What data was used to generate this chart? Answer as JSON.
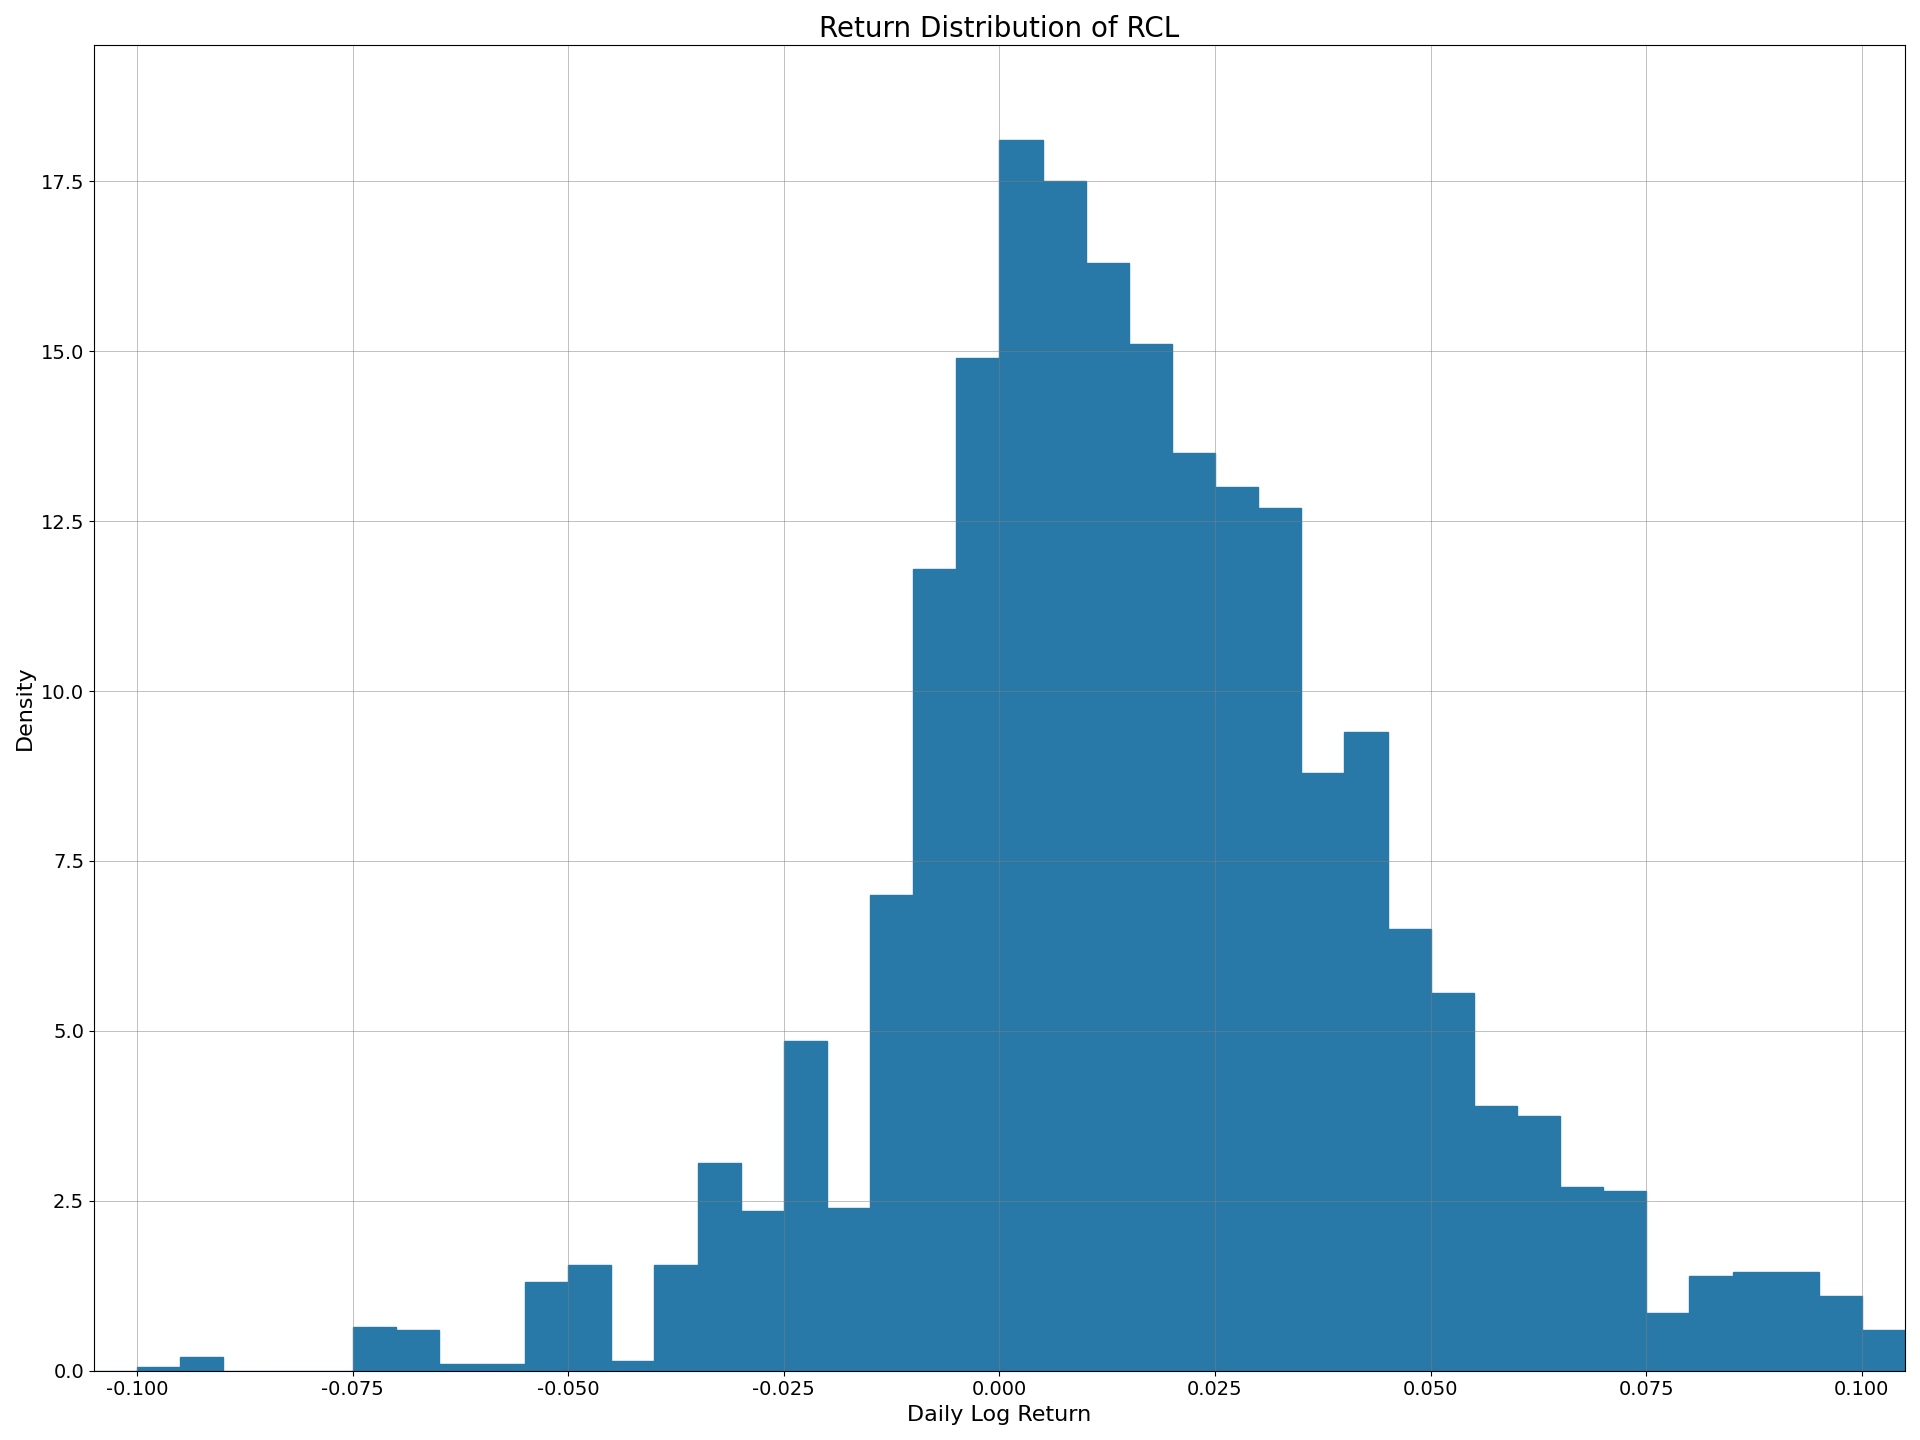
{
  "title": "Return Distribution of RCL",
  "xlabel": "Daily Log Return",
  "ylabel": "Density",
  "bar_color": "#2878a8",
  "xlim": [
    -0.105,
    0.105
  ],
  "ylim": [
    0,
    19.5
  ],
  "figsize": [
    19.2,
    14.4
  ],
  "dpi": 100,
  "bin_edges": [
    -0.105,
    -0.1,
    -0.095,
    -0.09,
    -0.085,
    -0.08,
    -0.075,
    -0.07,
    -0.065,
    -0.06,
    -0.055,
    -0.05,
    -0.045,
    -0.04,
    -0.035,
    -0.03,
    -0.025,
    -0.02,
    -0.015,
    -0.01,
    -0.005,
    0.0,
    0.005,
    0.01,
    0.015,
    0.02,
    0.025,
    0.03,
    0.035,
    0.04,
    0.045,
    0.05,
    0.055,
    0.06,
    0.065,
    0.07,
    0.075,
    0.08,
    0.085,
    0.09,
    0.095,
    0.1,
    0.105
  ],
  "bin_heights": [
    0.0,
    0.05,
    0.2,
    0.0,
    0.0,
    0.0,
    0.65,
    0.6,
    0.1,
    0.1,
    1.3,
    1.55,
    0.15,
    1.55,
    3.05,
    2.35,
    4.85,
    2.4,
    7.0,
    11.8,
    14.9,
    18.1,
    17.5,
    16.3,
    15.1,
    13.5,
    13.0,
    12.7,
    8.8,
    9.4,
    6.5,
    5.55,
    3.9,
    3.75,
    2.7,
    2.65,
    0.85,
    1.4,
    1.45,
    1.45,
    1.1,
    0.6
  ],
  "xticks": [
    -0.1,
    -0.075,
    -0.05,
    -0.025,
    0.0,
    0.025,
    0.05,
    0.075,
    0.1
  ],
  "xtick_labels": [
    "-0.100",
    "-0.075",
    "-0.050",
    "-0.025",
    "0.000",
    "0.025",
    "0.050",
    "0.075",
    "0.100"
  ],
  "title_fontsize": 20,
  "label_fontsize": 16,
  "tick_fontsize": 14
}
